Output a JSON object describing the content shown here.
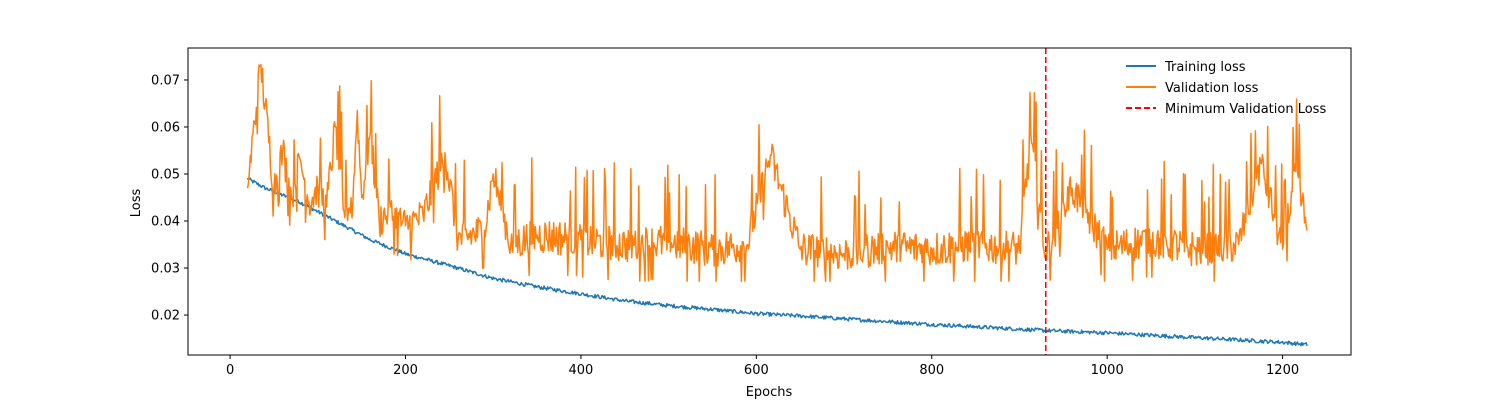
{
  "chart_data": {
    "type": "line",
    "xlabel": "Epochs",
    "ylabel": "Loss",
    "xlim": [
      -48,
      1278
    ],
    "ylim": [
      0.0115,
      0.0768
    ],
    "xticks": [
      0,
      200,
      400,
      600,
      800,
      1000,
      1200
    ],
    "yticks": [
      0.02,
      0.03,
      0.04,
      0.05,
      0.06,
      0.07
    ],
    "x_range": [
      20,
      1228
    ],
    "series": [
      {
        "name": "Training loss",
        "color": "#1f77b4",
        "style": "solid",
        "x": [
          20,
          40,
          60,
          80,
          100,
          120,
          140,
          160,
          180,
          200,
          250,
          300,
          350,
          400,
          450,
          500,
          550,
          600,
          650,
          700,
          750,
          800,
          850,
          900,
          930,
          1000,
          1050,
          1100,
          1150,
          1200,
          1228
        ],
        "y": [
          0.049,
          0.047,
          0.0455,
          0.044,
          0.042,
          0.04,
          0.038,
          0.036,
          0.0345,
          0.033,
          0.0305,
          0.0278,
          0.026,
          0.0245,
          0.023,
          0.022,
          0.0212,
          0.0203,
          0.0198,
          0.0192,
          0.0186,
          0.018,
          0.0175,
          0.017,
          0.0167,
          0.0162,
          0.0157,
          0.0152,
          0.0147,
          0.0142,
          0.0137
        ]
      },
      {
        "name": "Validation loss",
        "color": "#ff7f0e",
        "style": "solid",
        "x": [
          20,
          35,
          50,
          60,
          70,
          80,
          90,
          100,
          110,
          120,
          130,
          140,
          145,
          150,
          160,
          170,
          180,
          200,
          220,
          245,
          260,
          290,
          300,
          320,
          350,
          400,
          450,
          500,
          550,
          590,
          616,
          650,
          700,
          750,
          800,
          850,
          900,
          913,
          930,
          960,
          1000,
          1050,
          1100,
          1150,
          1175,
          1200,
          1215,
          1228
        ],
        "y": [
          0.047,
          0.0733,
          0.047,
          0.055,
          0.045,
          0.053,
          0.044,
          0.047,
          0.043,
          0.06,
          0.042,
          0.044,
          0.0635,
          0.045,
          0.059,
          0.04,
          0.042,
          0.039,
          0.041,
          0.0545,
          0.036,
          0.038,
          0.05,
          0.035,
          0.037,
          0.036,
          0.035,
          0.0355,
          0.034,
          0.035,
          0.054,
          0.034,
          0.033,
          0.0345,
          0.034,
          0.035,
          0.034,
          0.058,
          0.033,
          0.047,
          0.034,
          0.036,
          0.034,
          0.035,
          0.0525,
          0.034,
          0.0505,
          0.038
        ]
      }
    ],
    "vlines": [
      {
        "name": "Minimum Validation Loss",
        "x": 930,
        "color": "#ff0000",
        "style": "dashed"
      }
    ],
    "legend": {
      "position": "top-right",
      "entries": [
        "Training loss",
        "Validation loss",
        "Minimum Validation Loss"
      ]
    },
    "grid": false
  }
}
